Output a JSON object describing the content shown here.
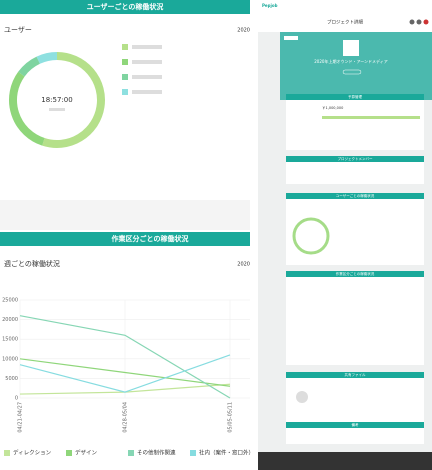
{
  "left_top": {
    "header": "ユーザーごとの稼働状況",
    "label": "ユーザー",
    "year": "2020"
  },
  "left_bottom": {
    "header": "作業区分ごとの稼働状況",
    "label": "週ごとの稼働状況",
    "year": "2020"
  },
  "chart_data": [
    {
      "type": "pie",
      "center_label": "18:57:00",
      "values": [
        55,
        30,
        8,
        7
      ],
      "colors": [
        "#b5e08a",
        "#8fd67a",
        "#7fd4a0",
        "#8ee0e0"
      ]
    },
    {
      "type": "line",
      "categories": [
        "04/21-04/27",
        "04/28-05/04",
        "05/05-05/11"
      ],
      "series": [
        {
          "name": "ディレクション",
          "color": "#c3e59a",
          "values": [
            1000,
            1500,
            3500
          ]
        },
        {
          "name": "デザイン",
          "color": "#8fd67a",
          "values": [
            10000,
            6500,
            3000
          ]
        },
        {
          "name": "その他制作関連",
          "color": "#86d6b4",
          "values": [
            21000,
            16000,
            0
          ]
        },
        {
          "name": "社内（案件・窓口外）",
          "color": "#86dce0",
          "values": [
            8500,
            1500,
            11000
          ]
        }
      ],
      "ylim": [
        0,
        25000
      ],
      "yticks": [
        0,
        5000,
        10000,
        15000,
        20000,
        25000
      ],
      "grid": true
    }
  ],
  "detail": {
    "logo": "Pepjob",
    "page_title": "プロジェクト詳細",
    "project_name": "2020年上期オウンド・アーンドメディア",
    "budget_header": "予算管理",
    "budget": "￥1,000,000",
    "members_header": "プロジェクトメンバー",
    "users_header": "ユーザーごとの稼働状況",
    "work_header": "作業区分ごとの稼働状況",
    "files_header": "共有ファイル",
    "notes_header": "備考"
  }
}
